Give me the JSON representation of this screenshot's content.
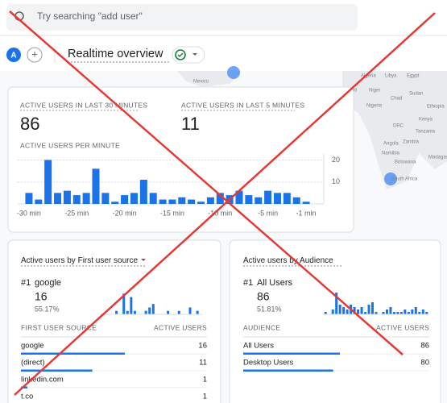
{
  "search": {
    "placeholder": "Try searching \"add user\""
  },
  "header": {
    "avatar": "A",
    "add": "+",
    "title": "Realtime overview"
  },
  "map": {
    "labels": [
      "Mexico",
      "Algeria",
      "Libya",
      "Egypt",
      "Mali",
      "Niger",
      "Chad",
      "Sudan",
      "Nigeria",
      "Ethiopia",
      "DRC",
      "Kenya",
      "Tanzania",
      "Angola",
      "Zambia",
      "Namibia",
      "Botswana",
      "Madagascar",
      "South Africa"
    ]
  },
  "overview": {
    "label_30": "ACTIVE USERS IN LAST 30 MINUTES",
    "value_30": 86,
    "label_5": "ACTIVE USERS IN LAST 5 MINUTES",
    "value_5": 11,
    "chart": {
      "type": "bar",
      "title": "ACTIVE USERS PER MINUTE",
      "color": "#1a73e8",
      "categories": [
        "-30 min",
        null,
        null,
        null,
        null,
        "-25 min",
        null,
        null,
        null,
        null,
        "-20 min",
        null,
        null,
        null,
        null,
        "-15 min",
        null,
        null,
        null,
        null,
        "-10 min",
        null,
        null,
        null,
        null,
        "-5 min",
        null,
        null,
        null,
        "-1 min"
      ],
      "values": [
        5,
        2,
        20,
        5,
        6,
        4,
        5,
        16,
        5,
        1,
        4,
        5,
        11,
        5,
        2,
        2,
        3,
        2,
        1,
        3,
        5,
        4,
        6,
        4,
        3,
        6,
        5,
        5,
        3,
        1
      ],
      "ylim": [
        0,
        22
      ],
      "yticks": [
        10,
        20
      ],
      "grid": true
    }
  },
  "source_card": {
    "title_metric": "Active users",
    "title_rest": " by First user source",
    "rank": "#1",
    "top_name": "google",
    "top_value": 16,
    "top_share": "55.17%",
    "chart": {
      "type": "bar",
      "color": "#1a73e8",
      "values": [
        0,
        0,
        0,
        0,
        1,
        0,
        6,
        1,
        5,
        1,
        0,
        0,
        1,
        2,
        3,
        0,
        0,
        0,
        1,
        0,
        0,
        1,
        0,
        0,
        2,
        0,
        1,
        0
      ],
      "ylim": [
        0,
        7
      ]
    },
    "columns": [
      "FIRST USER SOURCE",
      "ACTIVE USERS"
    ],
    "rows": [
      {
        "name": "google",
        "value": 16
      },
      {
        "name": "(direct)",
        "value": 11
      },
      {
        "name": "linkedin.com",
        "value": 1
      },
      {
        "name": "t.co",
        "value": 1
      }
    ]
  },
  "audience_card": {
    "title_metric": "Active users",
    "title_rest": " by Audience",
    "rank": "#1",
    "top_name": "All Users",
    "top_value": 86,
    "top_share": "51.81%",
    "chart": {
      "type": "bar",
      "color": "#1a73e8",
      "values": [
        1,
        0,
        2,
        9,
        4,
        3,
        2,
        4,
        3,
        2,
        3,
        1,
        4,
        5,
        1,
        0,
        1,
        2,
        3,
        1,
        1,
        1,
        2,
        1,
        2,
        3,
        1,
        2,
        1
      ],
      "ylim": [
        0,
        10
      ]
    },
    "columns": [
      "AUDIENCE",
      "ACTIVE USERS"
    ],
    "rows": [
      {
        "name": "All Users",
        "value": 86
      },
      {
        "name": "Desktop Users",
        "value": 80
      }
    ]
  }
}
